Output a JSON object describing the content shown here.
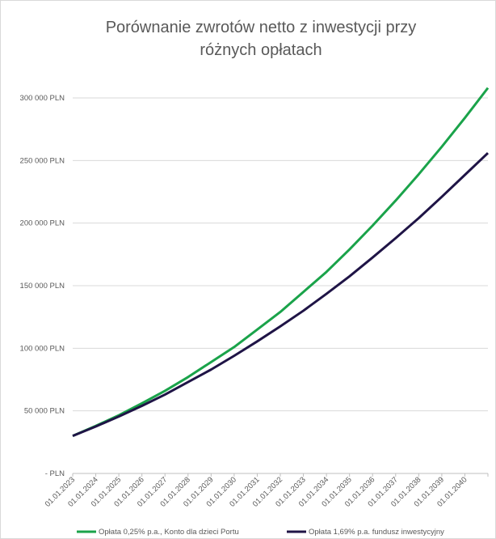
{
  "chart_data": {
    "type": "line",
    "title": [
      "Porównanie zwrotów netto z inwestycji przy",
      "różnych opłatach"
    ],
    "categories": [
      "01.01.2023",
      "01.01.2024",
      "01.01.2025",
      "01.01.2026",
      "01.01.2027",
      "01.01.2028",
      "01.01.2029",
      "01.01.2030",
      "01.01.2031",
      "01.01.2032",
      "01.01.2033",
      "01.01.2034",
      "01.01.2035",
      "01.01.2036",
      "01.01.2037",
      "01.01.2038",
      "01.01.2039",
      "01.01.2040",
      null
    ],
    "series": [
      {
        "name": "Opłata 0,25% p.a., Konto dla dzieci Portu",
        "color": "#1aa34a",
        "values": [
          30000,
          38000,
          46500,
          56000,
          66000,
          77000,
          89000,
          101000,
          115000,
          129000,
          145000,
          161000,
          179000,
          198000,
          218000,
          239000,
          261000,
          284000,
          308000
        ]
      },
      {
        "name": "Opłata 1,69% p.a. fundusz inwestycyjny",
        "color": "#1f1446",
        "values": [
          30000,
          37500,
          45500,
          54000,
          63000,
          73000,
          83000,
          94000,
          105500,
          117500,
          130000,
          143500,
          157500,
          172500,
          188000,
          204000,
          221000,
          238500,
          256000
        ]
      }
    ],
    "ylim": [
      0,
      300000
    ],
    "yticks": [
      {
        "value": 0,
        "label": "- PLN"
      },
      {
        "value": 50000,
        "label": "50 000 PLN"
      },
      {
        "value": 100000,
        "label": "100 000 PLN"
      },
      {
        "value": 150000,
        "label": "150 000 PLN"
      },
      {
        "value": 200000,
        "label": "200 000 PLN"
      },
      {
        "value": 250000,
        "label": "250 000 PLN"
      },
      {
        "value": 300000,
        "label": "300 000 PLN"
      }
    ],
    "grid": true
  }
}
